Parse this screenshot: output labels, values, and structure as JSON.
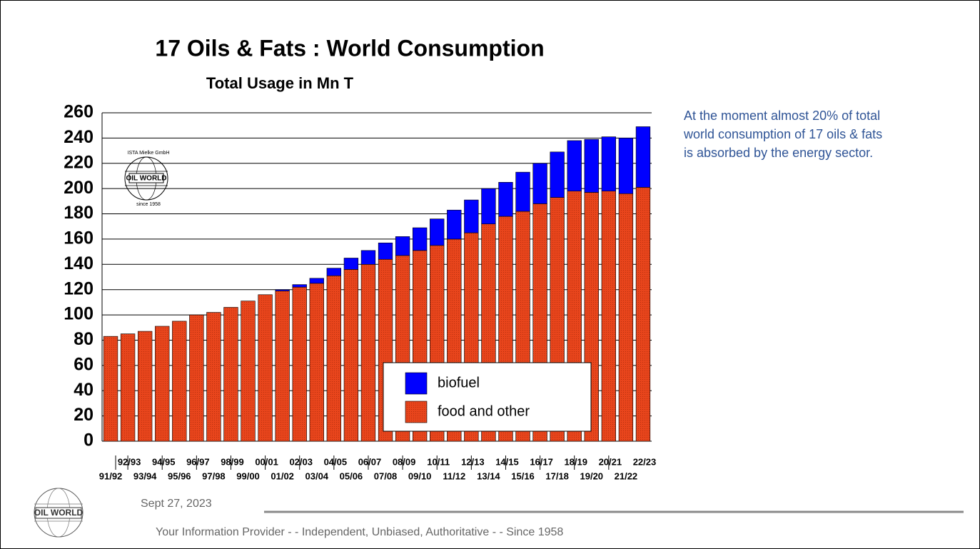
{
  "chart_data": {
    "type": "stacked_bar",
    "title": "17 Oils & Fats :  World Consumption",
    "subtitle": "Total Usage in Mn T",
    "annotation": [
      "At the moment almost 20% of total",
      "world consumption of 17 oils & fats",
      "is absorbed by the energy sector."
    ],
    "categories": [
      "91/92",
      "92/93",
      "93/94",
      "94/95",
      "95/96",
      "96/97",
      "97/98",
      "98/99",
      "99/00",
      "00/01",
      "01/02",
      "02/03",
      "03/04",
      "04/05",
      "05/06",
      "06/07",
      "07/08",
      "08/09",
      "09/10",
      "10/11",
      "11/12",
      "12/13",
      "13/14",
      "14/15",
      "15/16",
      "16/17",
      "17/18",
      "18/19",
      "19/20",
      "20/21",
      "21/22",
      "22/23"
    ],
    "series": [
      {
        "name": "food and other",
        "color": "#e8451c",
        "values": [
          83,
          85,
          87,
          91,
          95,
          100,
          102,
          106,
          111,
          116,
          119,
          122,
          125,
          131,
          136,
          140,
          144,
          147,
          151,
          155,
          160,
          165,
          172,
          178,
          182,
          188,
          193,
          198,
          197,
          198,
          196,
          201
        ]
      },
      {
        "name": "biofuel",
        "color": "#0000ff",
        "values": [
          0,
          0,
          0,
          0,
          0,
          0,
          0,
          0,
          0,
          0,
          1,
          2,
          4,
          6,
          9,
          11,
          13,
          15,
          18,
          21,
          23,
          26,
          28,
          27,
          31,
          32,
          36,
          40,
          42,
          43,
          44,
          48
        ]
      }
    ],
    "ylim": [
      0,
      260
    ],
    "yticks": [
      0,
      20,
      40,
      60,
      80,
      100,
      120,
      140,
      160,
      180,
      200,
      220,
      240,
      260
    ],
    "grid": true
  },
  "logo": {
    "name": "OIL WORLD",
    "maker": "ISTA Mielke GmbH",
    "since": "since 1958"
  },
  "footer": {
    "date": "Sept 27, 2023",
    "tagline": "Your Information Provider - - Independent, Unbiased, Authoritative - - Since 1958"
  }
}
